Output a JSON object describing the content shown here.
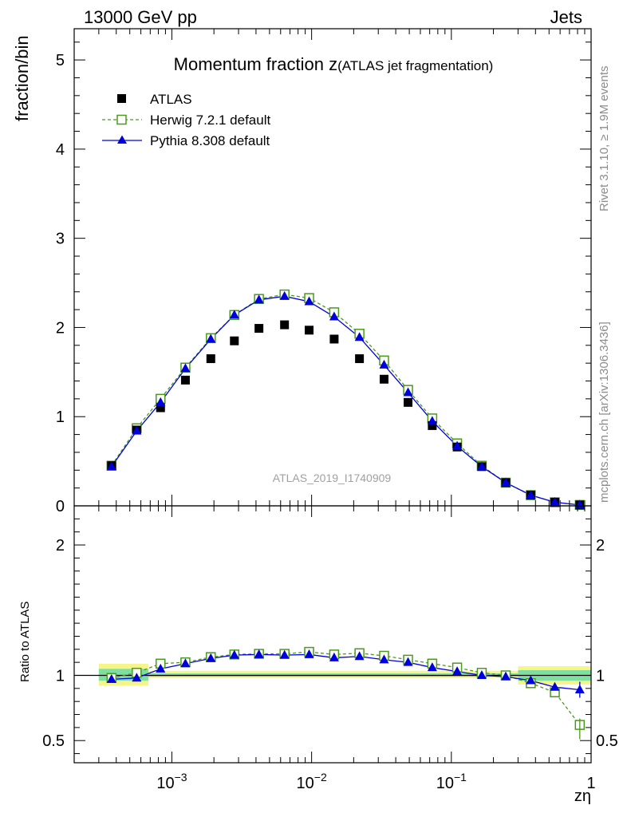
{
  "header": {
    "left": "13000 GeV pp",
    "right": "Jets"
  },
  "side_labels": {
    "rivet": "Rivet 3.1.10, ≥ 1.9M events",
    "mcplots": "mcplots.cern.ch [arXiv:1306.3436]"
  },
  "colors": {
    "atlas": "#000000",
    "herwig": "#4a9a1c",
    "pythia": "#0000dd",
    "band_yellow": "#f5f58a",
    "band_green": "#7ee0a0"
  },
  "chart_data": [
    {
      "type": "scatter",
      "panel": "main",
      "title_main": "Momentum fraction ",
      "title_var": "z",
      "title_sub": "(ATLAS jet fragmentation)",
      "ylabel": "fraction/bin",
      "watermark": "ATLAS_2019_I1740909",
      "xscale": "log",
      "xlim": [
        0.0002,
        1
      ],
      "ylim": [
        0,
        5.35
      ],
      "yticks": [
        "0",
        "1",
        "2",
        "3",
        "4",
        "5"
      ],
      "legend_position": "top-left",
      "x": [
        0.00037,
        0.00056,
        0.00083,
        0.00125,
        0.0019,
        0.0028,
        0.0042,
        0.0064,
        0.0096,
        0.0145,
        0.022,
        0.033,
        0.049,
        0.073,
        0.11,
        0.165,
        0.245,
        0.37,
        0.55,
        0.83
      ],
      "series": [
        {
          "name": "ATLAS",
          "marker": "filled-square",
          "values": [
            0.45,
            0.85,
            1.1,
            1.41,
            1.65,
            1.85,
            1.99,
            2.03,
            1.97,
            1.87,
            1.65,
            1.42,
            1.16,
            0.9,
            0.66,
            0.44,
            0.26,
            0.12,
            0.04,
            0.01
          ]
        },
        {
          "name": "Herwig 7.2.1 default",
          "marker": "open-square",
          "line": "dashed",
          "values": [
            0.45,
            0.87,
            1.2,
            1.55,
            1.88,
            2.14,
            2.32,
            2.37,
            2.33,
            2.17,
            1.93,
            1.63,
            1.3,
            0.98,
            0.7,
            0.45,
            0.26,
            0.12,
            0.04,
            0.01
          ]
        },
        {
          "name": "Pythia 8.308 default",
          "marker": "filled-triangle",
          "line": "solid",
          "values": [
            0.44,
            0.84,
            1.16,
            1.54,
            1.87,
            2.14,
            2.31,
            2.35,
            2.29,
            2.12,
            1.89,
            1.58,
            1.27,
            0.95,
            0.67,
            0.44,
            0.26,
            0.12,
            0.04,
            0.01
          ]
        }
      ]
    },
    {
      "type": "line",
      "panel": "ratio",
      "ylabel": "Ratio to ATLAS",
      "xlabel": "zη",
      "xscale": "log",
      "xlim": [
        0.0002,
        1
      ],
      "ylim": [
        0.33,
        2.3
      ],
      "yticks": [
        "0.5",
        "1",
        "2"
      ],
      "xticks": [
        "10",
        "10",
        "10",
        "1"
      ],
      "xtick_exponents": [
        "−3",
        "−2",
        "−1",
        ""
      ],
      "x": [
        0.00037,
        0.00056,
        0.00083,
        0.00125,
        0.0019,
        0.0028,
        0.0042,
        0.0064,
        0.0096,
        0.0145,
        0.022,
        0.033,
        0.049,
        0.073,
        0.11,
        0.165,
        0.245,
        0.37,
        0.55,
        0.83
      ],
      "series": [
        {
          "name": "Herwig 7.2.1 default",
          "values": [
            0.98,
            1.02,
            1.09,
            1.1,
            1.14,
            1.16,
            1.165,
            1.165,
            1.18,
            1.16,
            1.17,
            1.15,
            1.12,
            1.09,
            1.06,
            1.02,
            1.0,
            0.94,
            0.87,
            0.62
          ]
        },
        {
          "name": "Pythia 8.308 default",
          "values": [
            0.97,
            0.98,
            1.05,
            1.09,
            1.13,
            1.155,
            1.16,
            1.155,
            1.16,
            1.135,
            1.145,
            1.12,
            1.1,
            1.06,
            1.03,
            1.0,
            0.99,
            0.96,
            0.91,
            0.89
          ]
        }
      ],
      "bands": [
        {
          "x_range": [
            0.0003,
            0.00068
          ],
          "yellow": [
            0.92,
            1.09
          ],
          "green": [
            0.96,
            1.05
          ]
        },
        {
          "x_range": [
            0.00068,
            0.3
          ],
          "yellow": [
            0.98,
            1.035
          ],
          "green": [
            0.99,
            1.015
          ]
        },
        {
          "x_range": [
            0.3,
            1.0
          ],
          "yellow": [
            0.93,
            1.07
          ],
          "green": [
            0.96,
            1.04
          ]
        }
      ]
    }
  ]
}
